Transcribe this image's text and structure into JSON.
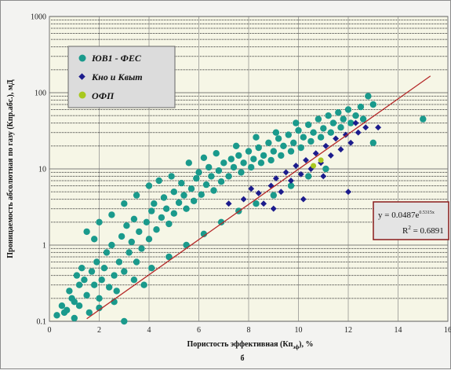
{
  "chart_data": {
    "type": "scatter",
    "title": "",
    "panel_label": "б",
    "xlabel": "Пористость эффективная (Кп",
    "xlabel_sub": "эф",
    "xlabel_tail": "), %",
    "ylabel": "Проницаемость абсолютная по газу (Кпр.абс.), мД",
    "xlim": [
      0,
      16
    ],
    "ylim": [
      0.1,
      1000
    ],
    "y_scale": "log",
    "x_ticks": [
      "0",
      "2",
      "4",
      "6",
      "8",
      "10",
      "12",
      "14",
      "16"
    ],
    "y_ticks": [
      "0.1",
      "1",
      "10",
      "100",
      "1000"
    ],
    "grid": true,
    "legend_position": "top-left",
    "colors": {
      "fes": "#1a9a8c",
      "kno": "#1c1c8c",
      "ofp": "#a8c81e",
      "trend": "#b42828",
      "box_border": "#8a1c1c",
      "plot_bg": "#f6f6e6"
    },
    "series": [
      {
        "name": "ЮВ1 - ФЕС",
        "marker": "circle",
        "points": [
          [
            0.3,
            0.12
          ],
          [
            0.5,
            0.16
          ],
          [
            0.7,
            0.14
          ],
          [
            1.0,
            0.18
          ],
          [
            0.8,
            0.25
          ],
          [
            1.2,
            0.3
          ],
          [
            1.5,
            0.22
          ],
          [
            1.1,
            0.4
          ],
          [
            1.4,
            0.35
          ],
          [
            1.8,
            0.3
          ],
          [
            1.0,
            0.11
          ],
          [
            1.6,
            0.13
          ],
          [
            2.0,
            0.2
          ],
          [
            1.3,
            0.5
          ],
          [
            1.7,
            0.45
          ],
          [
            2.1,
            0.35
          ],
          [
            2.4,
            0.28
          ],
          [
            1.9,
            0.6
          ],
          [
            2.2,
            0.5
          ],
          [
            2.6,
            0.4
          ],
          [
            2.3,
            0.8
          ],
          [
            2.8,
            0.6
          ],
          [
            3.0,
            0.45
          ],
          [
            2.5,
            1.0
          ],
          [
            3.2,
            0.8
          ],
          [
            3.5,
            0.6
          ],
          [
            2.9,
            1.3
          ],
          [
            3.3,
            1.1
          ],
          [
            3.7,
            0.9
          ],
          [
            3.1,
            1.8
          ],
          [
            3.6,
            1.5
          ],
          [
            4.0,
            1.2
          ],
          [
            3.4,
            2.2
          ],
          [
            3.9,
            2.0
          ],
          [
            4.3,
            1.6
          ],
          [
            4.1,
            2.8
          ],
          [
            4.5,
            2.3
          ],
          [
            4.8,
            1.9
          ],
          [
            4.2,
            3.5
          ],
          [
            4.7,
            3.0
          ],
          [
            5.0,
            2.6
          ],
          [
            4.6,
            4.2
          ],
          [
            5.2,
            3.6
          ],
          [
            5.5,
            3.0
          ],
          [
            5.0,
            5.0
          ],
          [
            5.4,
            4.5
          ],
          [
            5.8,
            3.8
          ],
          [
            5.3,
            6.5
          ],
          [
            5.7,
            5.5
          ],
          [
            6.1,
            4.6
          ],
          [
            5.9,
            7.5
          ],
          [
            6.3,
            6.2
          ],
          [
            6.6,
            5.2
          ],
          [
            6.0,
            9.0
          ],
          [
            6.5,
            8.0
          ],
          [
            6.9,
            6.8
          ],
          [
            6.4,
            10.5
          ],
          [
            6.8,
            9.5
          ],
          [
            7.2,
            8.0
          ],
          [
            7.0,
            12.0
          ],
          [
            7.4,
            10.5
          ],
          [
            7.7,
            9.0
          ],
          [
            7.3,
            13.5
          ],
          [
            7.8,
            12.0
          ],
          [
            8.1,
            10.5
          ],
          [
            7.6,
            15.0
          ],
          [
            8.2,
            13.5
          ],
          [
            8.5,
            12.0
          ],
          [
            8.0,
            17.0
          ],
          [
            8.6,
            15.0
          ],
          [
            8.9,
            13.0
          ],
          [
            8.4,
            19.0
          ],
          [
            9.0,
            17.0
          ],
          [
            9.3,
            15.0
          ],
          [
            8.8,
            22.0
          ],
          [
            9.4,
            20.0
          ],
          [
            9.7,
            17.0
          ],
          [
            9.2,
            25.0
          ],
          [
            9.8,
            22.0
          ],
          [
            10.1,
            19.0
          ],
          [
            9.6,
            28.0
          ],
          [
            10.2,
            26.0
          ],
          [
            10.5,
            23.0
          ],
          [
            10.0,
            32.0
          ],
          [
            10.6,
            30.0
          ],
          [
            10.9,
            26.0
          ],
          [
            10.4,
            38.0
          ],
          [
            11.0,
            34.0
          ],
          [
            11.3,
            30.0
          ],
          [
            10.8,
            45.0
          ],
          [
            11.4,
            40.0
          ],
          [
            11.7,
            35.0
          ],
          [
            11.2,
            50.0
          ],
          [
            11.8,
            45.0
          ],
          [
            12.1,
            40.0
          ],
          [
            11.6,
            55.0
          ],
          [
            12.3,
            50.0
          ],
          [
            12.6,
            45.0
          ],
          [
            12.0,
            60.0
          ],
          [
            12.8,
            90.0
          ],
          [
            13.0,
            70.0
          ],
          [
            12.5,
            65.0
          ],
          [
            13.0,
            22.0
          ],
          [
            15.0,
            45.0
          ],
          [
            1.5,
            1.5
          ],
          [
            2.0,
            2.0
          ],
          [
            2.5,
            2.5
          ],
          [
            1.8,
            1.2
          ],
          [
            3.0,
            3.5
          ],
          [
            3.5,
            4.5
          ],
          [
            4.0,
            6.0
          ],
          [
            4.4,
            7.0
          ],
          [
            4.9,
            8.0
          ],
          [
            5.6,
            12.0
          ],
          [
            6.2,
            14.0
          ],
          [
            6.7,
            16.0
          ],
          [
            7.5,
            20.0
          ],
          [
            8.3,
            26.0
          ],
          [
            9.1,
            30.0
          ],
          [
            9.9,
            40.0
          ],
          [
            2.0,
            0.15
          ],
          [
            2.7,
            0.25
          ],
          [
            3.4,
            0.35
          ],
          [
            4.1,
            0.5
          ],
          [
            4.8,
            0.7
          ],
          [
            5.5,
            1.0
          ],
          [
            6.2,
            1.4
          ],
          [
            6.9,
            2.0
          ],
          [
            7.6,
            2.8
          ],
          [
            8.3,
            3.5
          ],
          [
            9.0,
            4.5
          ],
          [
            9.7,
            6.0
          ],
          [
            10.4,
            8.0
          ],
          [
            11.1,
            10.0
          ],
          [
            0.6,
            0.13
          ],
          [
            0.9,
            0.2
          ],
          [
            1.2,
            0.16
          ],
          [
            2.6,
            0.18
          ],
          [
            3.0,
            0.1
          ],
          [
            3.8,
            0.3
          ]
        ]
      },
      {
        "name": "Кно и Квыт",
        "marker": "diamond",
        "points": [
          [
            7.2,
            3.5
          ],
          [
            7.8,
            4.0
          ],
          [
            8.1,
            5.5
          ],
          [
            8.4,
            4.8
          ],
          [
            8.6,
            3.5
          ],
          [
            8.9,
            6.0
          ],
          [
            9.1,
            7.5
          ],
          [
            9.3,
            5.0
          ],
          [
            9.5,
            9.0
          ],
          [
            9.7,
            7.0
          ],
          [
            9.9,
            11.0
          ],
          [
            10.1,
            8.5
          ],
          [
            10.3,
            13.0
          ],
          [
            10.5,
            10.0
          ],
          [
            10.7,
            16.0
          ],
          [
            10.9,
            12.0
          ],
          [
            11.1,
            20.0
          ],
          [
            11.3,
            15.0
          ],
          [
            11.5,
            25.0
          ],
          [
            11.7,
            18.0
          ],
          [
            11.9,
            28.0
          ],
          [
            12.1,
            22.0
          ],
          [
            12.4,
            30.0
          ],
          [
            12.7,
            35.0
          ],
          [
            13.2,
            35.0
          ],
          [
            12.0,
            5.0
          ],
          [
            9.0,
            3.0
          ],
          [
            10.2,
            4.0
          ],
          [
            11.0,
            8.0
          ],
          [
            12.3,
            40.0
          ]
        ]
      },
      {
        "name": "ОФП",
        "marker": "circle",
        "points": [
          [
            10.6,
            11.0
          ],
          [
            10.9,
            13.0
          ]
        ]
      }
    ],
    "trendline": {
      "a": 0.0487,
      "b": 0.5315,
      "x_range": [
        1.5,
        15.3
      ],
      "equation_base": "y = 0.0487e",
      "equation_exp": "0.5315x",
      "r2": "R",
      "r2_sup": "2",
      "r2_value": " = 0.6891"
    }
  }
}
